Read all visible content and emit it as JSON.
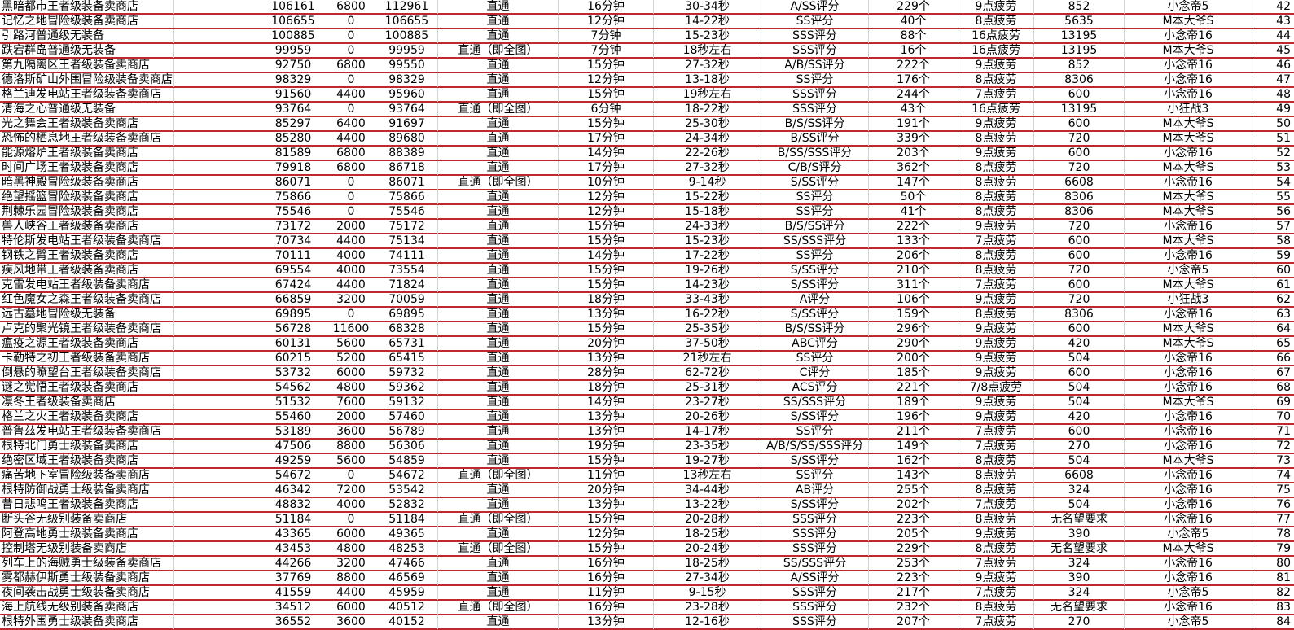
{
  "colors": {
    "row_border": "#c0282d",
    "grid": "#d4d4d4"
  },
  "rows": [
    [
      "黑暗都市王者级装备卖商店",
      "106161",
      "6800",
      "112961",
      "直通",
      "16分钟",
      "30-34秒",
      "A/SS评分",
      "229个",
      "9点疲劳",
      "852",
      "小念帝5",
      "42"
    ],
    [
      "记忆之地冒险级装备卖商店",
      "106655",
      "0",
      "106655",
      "直通",
      "12分钟",
      "14-22秒",
      "SS评分",
      "40个",
      "8点疲劳",
      "5635",
      "M本大爷S",
      "43"
    ],
    [
      "引路河普通级无装备",
      "100885",
      "0",
      "100885",
      "直通",
      "7分钟",
      "15-23秒",
      "SSS评分",
      "88个",
      "16点疲劳",
      "13195",
      "小念帝16",
      "44"
    ],
    [
      "跌宕群岛普通级无装备",
      "99959",
      "0",
      "99959",
      "直通（即全图）",
      "7分钟",
      "18秒左右",
      "SSS评分",
      "16个",
      "16点疲劳",
      "13195",
      "M本大爷S",
      "45"
    ],
    [
      "第九隔离区王者级装备卖商店",
      "92750",
      "6800",
      "99550",
      "直通",
      "15分钟",
      "27-32秒",
      "A/B/SS评分",
      "222个",
      "9点疲劳",
      "852",
      "小念帝16",
      "46"
    ],
    [
      "德洛斯矿山外围冒险级装备卖商店",
      "98329",
      "0",
      "98329",
      "直通",
      "12分钟",
      "13-18秒",
      "SS评分",
      "176个",
      "8点疲劳",
      "8306",
      "小念帝16",
      "47"
    ],
    [
      "格兰迪发电站王者级装备卖商店",
      "91560",
      "4400",
      "95960",
      "直通",
      "15分钟",
      "19秒左右",
      "SSS评分",
      "244个",
      "7点疲劳",
      "600",
      "小念帝16",
      "48"
    ],
    [
      "清海之心普通级无装备",
      "93764",
      "0",
      "93764",
      "直通（即全图）",
      "6分钟",
      "18-22秒",
      "SSS评分",
      "43个",
      "16点疲劳",
      "13195",
      "小狂战3",
      "49"
    ],
    [
      "光之舞会王者级装备卖商店",
      "85297",
      "6400",
      "91697",
      "直通",
      "15分钟",
      "25-30秒",
      "B/S/SS评分",
      "191个",
      "9点疲劳",
      "600",
      "M本大爷S",
      "50"
    ],
    [
      "恐怖的栖息地王者级装备卖商店",
      "85280",
      "4400",
      "89680",
      "直通",
      "17分钟",
      "24-34秒",
      "B/SS评分",
      "339个",
      "8点疲劳",
      "720",
      "M本大爷S",
      "51"
    ],
    [
      "能源熔炉王者级装备卖商店",
      "81589",
      "6800",
      "88389",
      "直通",
      "14分钟",
      "22-26秒",
      "B/SS/SSS评分",
      "203个",
      "9点疲劳",
      "600",
      "小念帝16",
      "52"
    ],
    [
      "时间广场王者级装备卖商店",
      "79918",
      "6800",
      "86718",
      "直通",
      "17分钟",
      "27-32秒",
      "C/B/S评分",
      "362个",
      "8点疲劳",
      "720",
      "M本大爷S",
      "53"
    ],
    [
      "暗黑神殿冒险级装备卖商店",
      "86071",
      "0",
      "86071",
      "直通（即全图）",
      "10分钟",
      "9-14秒",
      "S/SS评分",
      "147个",
      "8点疲劳",
      "6608",
      "小念帝16",
      "54"
    ],
    [
      "绝望摇篮冒险级装备卖商店",
      "75866",
      "0",
      "75866",
      "直通",
      "12分钟",
      "15-22秒",
      "SS评分",
      "50个",
      "8点疲劳",
      "8306",
      "M本大爷S",
      "55"
    ],
    [
      "荆棘乐园冒险级装备卖商店",
      "75546",
      "0",
      "75546",
      "直通",
      "12分钟",
      "15-18秒",
      "SS评分",
      "41个",
      "8点疲劳",
      "8306",
      "M本大爷S",
      "56"
    ],
    [
      "兽人峡谷王者级装备卖商店",
      "73172",
      "2000",
      "75172",
      "直通",
      "15分钟",
      "24-33秒",
      "B/S/SS评分",
      "222个",
      "9点疲劳",
      "720",
      "小念帝16",
      "57"
    ],
    [
      "特伦斯发电站王者级装备卖商店",
      "70734",
      "4400",
      "75134",
      "直通",
      "15分钟",
      "15-23秒",
      "SS/SSS评分",
      "133个",
      "7点疲劳",
      "600",
      "M本大爷S",
      "58"
    ],
    [
      "钢铁之臂王者级装备卖商店",
      "70111",
      "4000",
      "74111",
      "直通",
      "14分钟",
      "17-22秒",
      "SS评分",
      "206个",
      "8点疲劳",
      "600",
      "小念帝16",
      "59"
    ],
    [
      "疾风地带王者级装备卖商店",
      "69554",
      "4000",
      "73554",
      "直通",
      "15分钟",
      "19-26秒",
      "S/SS评分",
      "210个",
      "8点疲劳",
      "720",
      "小念帝5",
      "60"
    ],
    [
      "克雷发电站王者级装备卖商店",
      "67424",
      "4400",
      "71824",
      "直通",
      "15分钟",
      "14-23秒",
      "S/SS评分",
      "311个",
      "7点疲劳",
      "600",
      "M本大爷S",
      "61"
    ],
    [
      "红色魔女之森王者级装备卖商店",
      "66859",
      "3200",
      "70059",
      "直通",
      "18分钟",
      "33-43秒",
      "A评分",
      "106个",
      "9点疲劳",
      "720",
      "小狂战3",
      "62"
    ],
    [
      "远古墓地冒险级无装备",
      "69895",
      "0",
      "69895",
      "直通",
      "13分钟",
      "16-22秒",
      "S/SS评分",
      "159个",
      "8点疲劳",
      "8306",
      "小念帝16",
      "63"
    ],
    [
      "卢克的聚光镜王者级装备卖商店",
      "56728",
      "11600",
      "68328",
      "直通",
      "15分钟",
      "25-35秒",
      "B/S/SS评分",
      "296个",
      "9点疲劳",
      "600",
      "M本大爷S",
      "64"
    ],
    [
      "瘟疫之源王者级装备卖商店",
      "60131",
      "5600",
      "65731",
      "直通",
      "20分钟",
      "37-50秒",
      "ABC评分",
      "290个",
      "9点疲劳",
      "420",
      "M本大爷S",
      "65"
    ],
    [
      "卡勒特之初王者级装备卖商店",
      "60215",
      "5200",
      "65415",
      "直通",
      "13分钟",
      "21秒左右",
      "SS评分",
      "200个",
      "9点疲劳",
      "504",
      "小念帝16",
      "66"
    ],
    [
      "倒悬的瞭望台王者级装备卖商店",
      "53732",
      "6000",
      "59732",
      "直通",
      "28分钟",
      "62-72秒",
      "C评分",
      "185个",
      "9点疲劳",
      "600",
      "小念帝16",
      "67"
    ],
    [
      "谜之觉悟王者级装备卖商店",
      "54562",
      "4800",
      "59362",
      "直通",
      "18分钟",
      "25-31秒",
      "ACS评分",
      "221个",
      "7/8点疲劳",
      "504",
      "小念帝16",
      "68"
    ],
    [
      "凛冬王者级装备卖商店",
      "51532",
      "7600",
      "59132",
      "直通",
      "14分钟",
      "23-27秒",
      "SS/SSS评分",
      "189个",
      "9点疲劳",
      "504",
      "M本大爷S",
      "69"
    ],
    [
      "格兰之火王者级装备卖商店",
      "55460",
      "2000",
      "57460",
      "直通",
      "13分钟",
      "20-26秒",
      "S/SS评分",
      "196个",
      "9点疲劳",
      "420",
      "小念帝16",
      "70"
    ],
    [
      "普鲁兹发电站王者级装备卖商店",
      "53189",
      "3600",
      "56789",
      "直通",
      "13分钟",
      "14-17秒",
      "SS评分",
      "211个",
      "7点疲劳",
      "600",
      "小念帝16",
      "71"
    ],
    [
      "根特北门勇士级装备卖商店",
      "47506",
      "8800",
      "56306",
      "直通",
      "19分钟",
      "23-35秒",
      "A/B/S/SS/SSS评分",
      "149个",
      "7点疲劳",
      "270",
      "小念帝16",
      "72"
    ],
    [
      "绝密区域王者级装备卖商店",
      "49259",
      "5600",
      "54859",
      "直通",
      "15分钟",
      "19-27秒",
      "S/SS评分",
      "162个",
      "8点疲劳",
      "504",
      "M本大爷S",
      "73"
    ],
    [
      "痛苦地下室冒险级装备卖商店",
      "54672",
      "0",
      "54672",
      "直通（即全图）",
      "11分钟",
      "13秒左右",
      "SS评分",
      "143个",
      "8点疲劳",
      "6608",
      "小念帝16",
      "74"
    ],
    [
      "根特防御战勇士级装备卖商店",
      "46342",
      "7200",
      "53542",
      "直通",
      "20分钟",
      "34-44秒",
      "AB评分",
      "255个",
      "8点疲劳",
      "324",
      "小念帝16",
      "75"
    ],
    [
      "昔日悲鸣王者级装备卖商店",
      "48832",
      "4000",
      "52832",
      "直通",
      "13分钟",
      "13-22秒",
      "S/SS评分",
      "202个",
      "7点疲劳",
      "504",
      "小念帝16",
      "76"
    ],
    [
      "断头谷无级别装备卖商店",
      "51184",
      "0",
      "51184",
      "直通（即全图）",
      "15分钟",
      "20-28秒",
      "SSS评分",
      "223个",
      "8点疲劳",
      "无名望要求",
      "小念帝16",
      "77"
    ],
    [
      "阿登高地勇士级装备卖商店",
      "43365",
      "6000",
      "49365",
      "直通",
      "12分钟",
      "18-25秒",
      "SSS评分",
      "205个",
      "9点疲劳",
      "390",
      "小念帝5",
      "78"
    ],
    [
      "控制塔无级别装备卖商店",
      "43453",
      "4800",
      "48253",
      "直通（即全图）",
      "15分钟",
      "20-24秒",
      "SSS评分",
      "229个",
      "8点疲劳",
      "无名望要求",
      "M本大爷S",
      "79"
    ],
    [
      "列车上的海贼勇士级装备卖商店",
      "44266",
      "3200",
      "47466",
      "直通",
      "16分钟",
      "18-25秒",
      "SS/SSS评分",
      "253个",
      "7点疲劳",
      "324",
      "小念帝16",
      "80"
    ],
    [
      "雾都赫伊斯勇士级装备卖商店",
      "37769",
      "8800",
      "46569",
      "直通",
      "16分钟",
      "27-34秒",
      "A/SS评分",
      "223个",
      "9点疲劳",
      "390",
      "小念帝16",
      "81"
    ],
    [
      "夜间袭击战勇士级装备卖商店",
      "41559",
      "4400",
      "45959",
      "直通",
      "11分钟",
      "9-15秒",
      "SSS评分",
      "217个",
      "7点疲劳",
      "324",
      "小念帝5",
      "82"
    ],
    [
      "海上航线无级别装备卖商店",
      "34512",
      "6000",
      "40512",
      "直通（即全图）",
      "16分钟",
      "23-28秒",
      "SSS评分",
      "232个",
      "8点疲劳",
      "无名望要求",
      "小念帝16",
      "83"
    ],
    [
      "根特外围勇士级装备卖商店",
      "36552",
      "3600",
      "40152",
      "直通",
      "13分钟",
      "12-16秒",
      "SSS评分",
      "207个",
      "7点疲劳",
      "270",
      "小念帝5",
      "84"
    ]
  ]
}
